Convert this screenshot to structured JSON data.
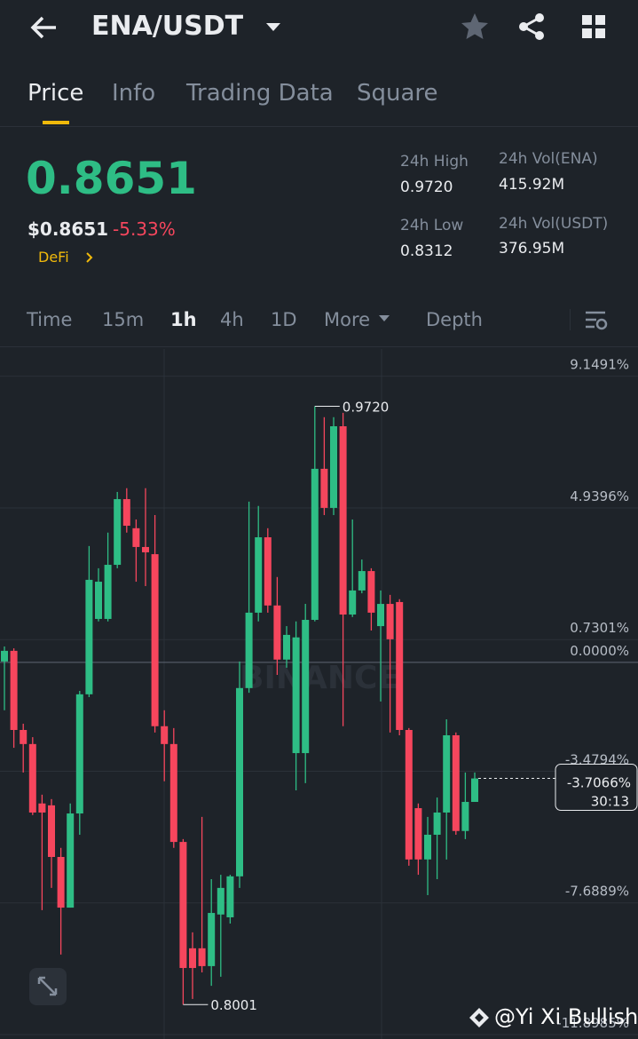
{
  "header": {
    "pair": "ENA/USDT",
    "tabs": [
      "Price",
      "Info",
      "Trading Data",
      "Square"
    ]
  },
  "ticker": {
    "price": "0.8651",
    "price_usd": "$0.8651",
    "change": "-5.33%",
    "tag": "DeFi",
    "stats": [
      {
        "label": "24h High",
        "value": "0.9720"
      },
      {
        "label": "24h Vol(ENA)",
        "value": "415.92M"
      },
      {
        "label": "24h Low",
        "value": "0.8312"
      },
      {
        "label": "24h Vol(USDT)",
        "value": "376.95M"
      }
    ]
  },
  "intervals": [
    "Time",
    "15m",
    "1h",
    "4h",
    "1D",
    "More",
    "Depth"
  ],
  "chart_data": {
    "type": "candlestick",
    "up_color": "#2ebd85",
    "down_color": "#f6465d",
    "logo_text": "BINANCE",
    "open": [
      0.03,
      0.37,
      -2.16,
      -2.61,
      -4.51,
      -4.57,
      -6.22,
      -7.84,
      -4.83,
      -1.02,
      1.39,
      1.39,
      3.12,
      5.22,
      4.29,
      3.69,
      3.46,
      -2.04,
      -2.61,
      -5.74,
      -9.14,
      -9.14,
      -9.71,
      -8.06,
      -8.15,
      -6.84,
      -0.82,
      1.59,
      4.0,
      1.82,
      0.09,
      -2.9,
      -2.9,
      1.36,
      6.19,
      4.94,
      7.55,
      1.53,
      2.3,
      2.92,
      1.16,
      1.87,
      1.93,
      -2.16,
      -4.66,
      -6.3,
      -5.51,
      -4.8,
      -2.33,
      -5.39,
      -4.46
    ],
    "high": [
      0.51,
      0.45,
      -1.96,
      -2.39,
      -4.23,
      -4.37,
      -5.93,
      -4.51,
      -0.91,
      3.72,
      3.01,
      4.15,
      5.45,
      5.57,
      4.57,
      5.57,
      4.71,
      -1.53,
      -2.1,
      -5.65,
      -8.63,
      -4.94,
      -6.93,
      -6.79,
      -6.79,
      0.03,
      5.14,
      5.0,
      4.29,
      2.73,
      1.16,
      1.31,
      1.87,
      8.19,
      7.84,
      7.84,
      7.98,
      4.57,
      3.29,
      3.01,
      2.3,
      2.16,
      2.02,
      -2.1,
      -4.51,
      -4.94,
      -4.32,
      -1.82,
      -2.24,
      -3.52,
      -3.52
    ],
    "low": [
      -1.53,
      -2.73,
      -3.52,
      -4.88,
      -7.92,
      -7.21,
      -9.34,
      -7.84,
      -5.51,
      -1.11,
      1.31,
      1.31,
      3.01,
      4.15,
      2.58,
      2.44,
      -2.24,
      -3.8,
      -5.93,
      -10.94,
      -10.76,
      -9.91,
      -10.34,
      -10.05,
      -8.35,
      -7.21,
      -0.97,
      1.31,
      1.59,
      -0.4,
      -0.17,
      -4.09,
      -3.86,
      1.31,
      4.71,
      4.71,
      -2.04,
      1.45,
      2.21,
      1.02,
      -1.25,
      -2.24,
      -2.33,
      -6.5,
      -6.79,
      -7.44,
      -6.93,
      -6.3,
      -5.51,
      -5.65,
      -4.46
    ],
    "close": [
      0.37,
      -2.16,
      -2.61,
      -4.8,
      -4.8,
      -6.22,
      -7.84,
      -4.83,
      -1.02,
      2.64,
      2.58,
      3.12,
      5.22,
      4.37,
      3.69,
      3.52,
      -2.04,
      -2.61,
      -5.74,
      -9.77,
      -9.77,
      -9.71,
      -8.01,
      -7.21,
      -6.84,
      -0.82,
      1.59,
      4.0,
      1.82,
      0.09,
      0.88,
      0.8,
      1.36,
      6.19,
      4.94,
      7.55,
      1.53,
      2.3,
      2.92,
      1.59,
      1.87,
      0.74,
      -2.16,
      -6.3,
      -6.3,
      -5.51,
      -4.8,
      -2.33,
      -5.39,
      -4.46,
      -3.71
    ],
    "ylim": [
      -11.8985,
      10.02
    ],
    "yticks": [
      {
        "value": 9.1491,
        "label": "9.1491%"
      },
      {
        "value": 4.9396,
        "label": "4.9396%"
      },
      {
        "value": 0.7301,
        "label": "0.7301%"
      },
      {
        "value": 0,
        "label": "0.0000%"
      },
      {
        "value": -3.4794,
        "label": "-3.4794%"
      },
      {
        "value": -7.6889,
        "label": "-7.6889%"
      },
      {
        "value": -11.8985,
        "label": "-11.8985%"
      }
    ],
    "grid": true,
    "high_label": "0.9720",
    "low_label": "0.8001",
    "last_price": {
      "value": -3.7066,
      "label": "-3.7066%"
    },
    "countdown": "30:13"
  },
  "watermark": "@Yi Xi Bullish"
}
